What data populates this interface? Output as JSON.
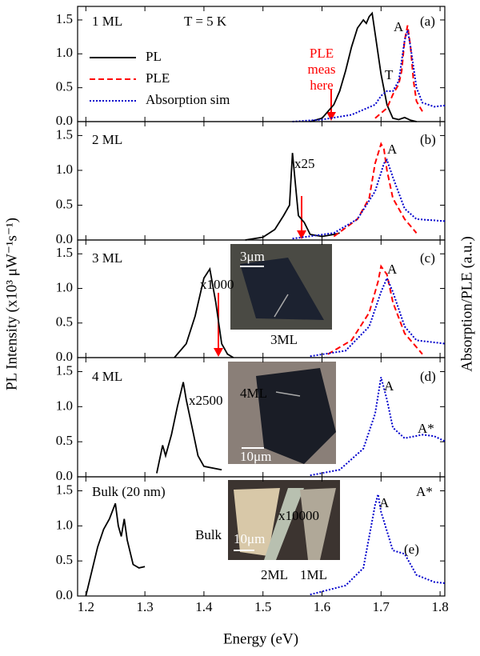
{
  "chart_data": {
    "type": "line",
    "x_label": "Energy (eV)",
    "y_label": "PL Intensity (x10³ μW⁻¹s⁻¹)",
    "y2_label": "Absorption/PLE (a.u.)",
    "xlim": [
      1.186,
      1.808
    ],
    "xticks": [
      1.2,
      1.3,
      1.4,
      1.5,
      1.6,
      1.7,
      1.8
    ],
    "ylim": [
      0,
      1.7
    ],
    "yticks": [
      {
        "value": 0,
        "label": "0.0"
      },
      {
        "value": 0.5,
        "label": "0.5"
      },
      {
        "value": 1,
        "label": "1.0"
      },
      {
        "value": 1.5,
        "label": "1.5"
      }
    ],
    "panels": [
      {
        "legend": true,
        "annotations": [
          "1 ML",
          "T = 5 K",
          "(a)",
          "A",
          "T",
          "PLE",
          "meas",
          "here"
        ],
        "series": [
          {
            "name": "PL",
            "color": "#000000",
            "style": "solid",
            "x": [
              1.58,
              1.6,
              1.62,
              1.63,
              1.64,
              1.65,
              1.66,
              1.67,
              1.675,
              1.68,
              1.685,
              1.69,
              1.7,
              1.71,
              1.72,
              1.73,
              1.74,
              1.75,
              1.76
            ],
            "values": [
              0.0,
              0.05,
              0.25,
              0.45,
              0.75,
              1.1,
              1.38,
              1.5,
              1.45,
              1.55,
              1.6,
              1.3,
              0.7,
              0.25,
              0.05,
              0.03,
              0.06,
              0.02,
              0.0
            ]
          },
          {
            "name": "PLE",
            "color": "#ff0000",
            "style": "dashed",
            "x": [
              1.69,
              1.71,
              1.72,
              1.73,
              1.735,
              1.74,
              1.745,
              1.75,
              1.755,
              1.76,
              1.77
            ],
            "values": [
              0.05,
              0.2,
              0.4,
              0.55,
              0.75,
              1.2,
              1.42,
              1.1,
              0.6,
              0.3,
              0.15
            ]
          },
          {
            "name": "Absorption sim",
            "color": "#0000cc",
            "style": "dotted",
            "x": [
              1.55,
              1.6,
              1.65,
              1.69,
              1.7,
              1.71,
              1.72,
              1.73,
              1.74,
              1.745,
              1.75,
              1.76,
              1.77,
              1.79,
              1.81
            ],
            "values": [
              0.0,
              0.03,
              0.1,
              0.25,
              0.38,
              0.45,
              0.45,
              0.6,
              1.2,
              1.35,
              1.1,
              0.5,
              0.28,
              0.22,
              0.24
            ]
          }
        ]
      },
      {
        "annotations": [
          "2 ML",
          "x25",
          "A",
          "(b)"
        ],
        "series": [
          {
            "color": "#000000",
            "style": "solid",
            "x": [
              1.47,
              1.5,
              1.52,
              1.535,
              1.545,
              1.55,
              1.555,
              1.56,
              1.57,
              1.58,
              1.6,
              1.62,
              1.63
            ],
            "values": [
              0.0,
              0.04,
              0.15,
              0.35,
              0.5,
              1.25,
              0.8,
              0.35,
              0.25,
              0.08,
              0.05,
              0.08,
              0.1
            ]
          },
          {
            "color": "#ff0000",
            "style": "dashed",
            "x": [
              1.62,
              1.66,
              1.68,
              1.69,
              1.7,
              1.705,
              1.71,
              1.72,
              1.74,
              1.76
            ],
            "values": [
              0.05,
              0.3,
              0.6,
              1.1,
              1.38,
              1.3,
              1.0,
              0.6,
              0.3,
              0.1
            ]
          },
          {
            "color": "#0000cc",
            "style": "dotted",
            "x": [
              1.55,
              1.62,
              1.66,
              1.69,
              1.705,
              1.71,
              1.72,
              1.74,
              1.76,
              1.81
            ],
            "values": [
              0.02,
              0.1,
              0.3,
              0.7,
              1.1,
              1.15,
              0.9,
              0.45,
              0.3,
              0.27
            ]
          }
        ]
      },
      {
        "annotations": [
          "3 ML",
          "x1000",
          "A",
          "(c)",
          "3μm",
          "3ML"
        ],
        "series": [
          {
            "color": "#000000",
            "style": "solid",
            "x": [
              1.35,
              1.37,
              1.385,
              1.4,
              1.41,
              1.42,
              1.43,
              1.44,
              1.45
            ],
            "values": [
              0.0,
              0.2,
              0.6,
              1.15,
              1.28,
              0.8,
              0.2,
              0.05,
              0.0
            ]
          },
          {
            "color": "#ff0000",
            "style": "dashed",
            "x": [
              1.61,
              1.65,
              1.68,
              1.695,
              1.7,
              1.71,
              1.72,
              1.74,
              1.76,
              1.77
            ],
            "values": [
              0.05,
              0.25,
              0.65,
              1.1,
              1.32,
              1.2,
              0.8,
              0.35,
              0.15,
              0.05
            ]
          },
          {
            "color": "#0000cc",
            "style": "dotted",
            "x": [
              1.58,
              1.64,
              1.68,
              1.7,
              1.71,
              1.72,
              1.74,
              1.76,
              1.81
            ],
            "values": [
              0.02,
              0.1,
              0.45,
              0.95,
              1.15,
              0.95,
              0.45,
              0.25,
              0.2
            ]
          }
        ]
      },
      {
        "annotations": [
          "4 ML",
          "x2500",
          "A",
          "(d)",
          "A*",
          "4ML",
          "10μm"
        ],
        "series": [
          {
            "color": "#000000",
            "style": "solid",
            "x": [
              1.32,
              1.33,
              1.335,
              1.345,
              1.355,
              1.365,
              1.37,
              1.38,
              1.39,
              1.4,
              1.43
            ],
            "values": [
              0.05,
              0.45,
              0.3,
              0.6,
              1.0,
              1.35,
              1.1,
              0.7,
              0.3,
              0.15,
              0.1
            ]
          },
          {
            "color": "#0000cc",
            "style": "dotted",
            "x": [
              1.58,
              1.63,
              1.67,
              1.69,
              1.7,
              1.71,
              1.72,
              1.74,
              1.77,
              1.79,
              1.81
            ],
            "values": [
              0.02,
              0.1,
              0.4,
              0.9,
              1.42,
              1.1,
              0.7,
              0.55,
              0.6,
              0.58,
              0.5
            ]
          }
        ]
      },
      {
        "annotations": [
          "Bulk (20 nm)",
          "x10000",
          "A",
          "(e)",
          "A*",
          "Bulk",
          "10μm",
          "2ML",
          "1ML"
        ],
        "series": [
          {
            "color": "#000000",
            "style": "solid",
            "x": [
              1.2,
              1.21,
              1.22,
              1.23,
              1.24,
              1.25,
              1.255,
              1.26,
              1.265,
              1.27,
              1.28,
              1.29,
              1.3
            ],
            "values": [
              0.0,
              0.35,
              0.7,
              0.95,
              1.1,
              1.32,
              1.0,
              0.85,
              1.1,
              0.8,
              0.45,
              0.4,
              0.42
            ]
          },
          {
            "color": "#0000cc",
            "style": "dotted",
            "x": [
              1.58,
              1.64,
              1.67,
              1.69,
              1.695,
              1.7,
              1.72,
              1.74,
              1.76,
              1.79,
              1.81
            ],
            "values": [
              0.02,
              0.15,
              0.4,
              1.3,
              1.45,
              1.2,
              0.65,
              0.6,
              0.3,
              0.2,
              0.18
            ]
          }
        ]
      }
    ]
  }
}
